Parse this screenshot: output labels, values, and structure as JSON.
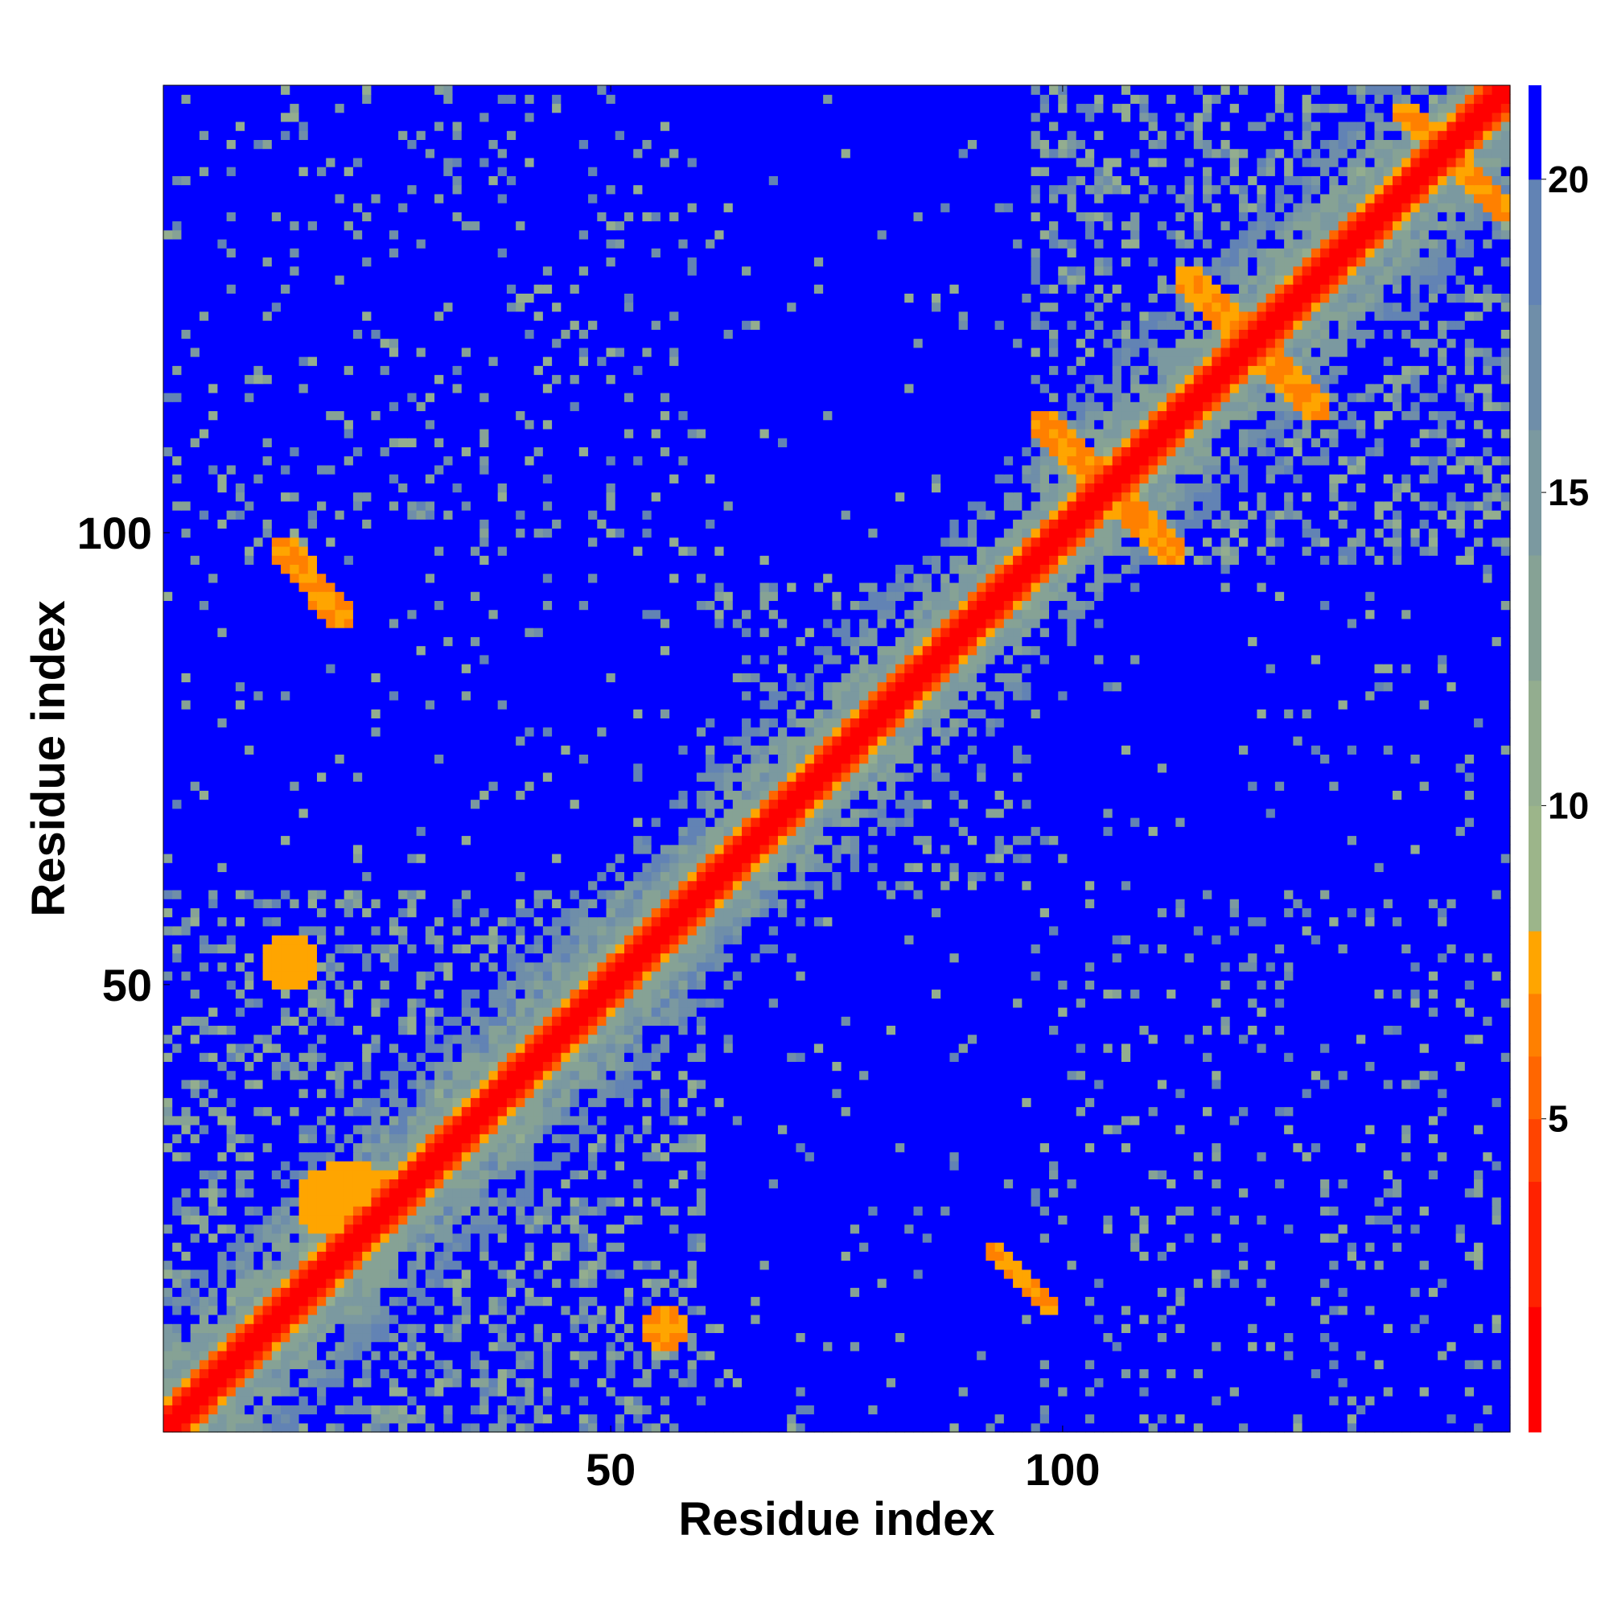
{
  "chart_data": {
    "type": "heatmap",
    "title": "",
    "xlabel": "Residue index",
    "ylabel": "Residue index",
    "n_residues": 149,
    "xlim": [
      1,
      149
    ],
    "ylim": [
      1,
      149
    ],
    "x_ticks": [
      50,
      100
    ],
    "y_ticks": [
      50,
      100
    ],
    "colorbar": {
      "ticks": [
        5,
        10,
        15,
        20
      ],
      "range": [
        0,
        21.5
      ],
      "levels": [
        {
          "min": 0,
          "max": 2,
          "color": "#ff0000"
        },
        {
          "min": 2,
          "max": 4,
          "color": "#ff2200"
        },
        {
          "min": 4,
          "max": 5,
          "color": "#ff4400"
        },
        {
          "min": 5,
          "max": 6,
          "color": "#ff6600"
        },
        {
          "min": 6,
          "max": 7,
          "color": "#ff8000"
        },
        {
          "min": 7,
          "max": 8,
          "color": "#ffa500"
        },
        {
          "min": 8,
          "max": 10,
          "color": "#9cb58a"
        },
        {
          "min": 10,
          "max": 12,
          "color": "#93ad8f"
        },
        {
          "min": 12,
          "max": 14,
          "color": "#86a295"
        },
        {
          "min": 14,
          "max": 16,
          "color": "#7b99a0"
        },
        {
          "min": 16,
          "max": 18,
          "color": "#6f8ea9"
        },
        {
          "min": 18,
          "max": 20,
          "color": "#6283b4"
        },
        {
          "min": 20,
          "max": 21.5,
          "color": "#0000ff"
        }
      ]
    },
    "diagonal_band": {
      "core_width": 2,
      "values_near": [
        0,
        3,
        5.5,
        7
      ]
    },
    "contact_patches": [
      {
        "i_range": [
          13,
          20
        ],
        "j_range": [
          91,
          98
        ],
        "value": 6.5,
        "shape": "antiparallel"
      },
      {
        "i_range": [
          89,
          98
        ],
        "j_range": [
          12,
          20
        ],
        "value": 6.5,
        "shape": "antiparallel"
      },
      {
        "i_range": [
          96,
          112
        ],
        "j_range": [
          96,
          112
        ],
        "value": 6.5,
        "shape": "antiparallel-cross"
      },
      {
        "i_range": [
          112,
          128
        ],
        "j_range": [
          112,
          128
        ],
        "value": 6.5,
        "shape": "antiparallel-cross"
      },
      {
        "i_range": [
          134,
          146
        ],
        "j_range": [
          136,
          149
        ],
        "value": 6.5,
        "shape": "antiparallel-cross"
      },
      {
        "i_range": [
          20,
          30
        ],
        "j_range": [
          14,
          26
        ],
        "value": 7,
        "shape": "blob"
      },
      {
        "i_range": [
          48,
          55
        ],
        "j_range": [
          10,
          17
        ],
        "value": 7,
        "shape": "blob"
      },
      {
        "i_range": [
          8,
          14
        ],
        "j_range": [
          52,
          58
        ],
        "value": 6.5,
        "shape": "blob"
      }
    ],
    "background_value": 21,
    "grid": false,
    "legend": "colorbar-right"
  }
}
